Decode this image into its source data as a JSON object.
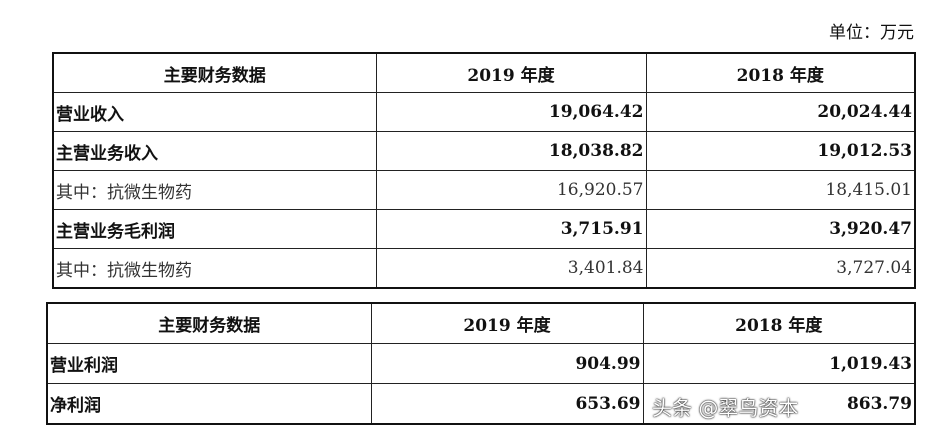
{
  "unit": "单位：万元",
  "table1": {
    "headers": [
      "主要财务数据",
      "2019 年度",
      "2018 年度"
    ],
    "rows": [
      {
        "label": "营业收入",
        "v2019": "19,064.42",
        "v2018": "20,024.44",
        "bold": true
      },
      {
        "label": "主营业务收入",
        "v2019": "18,038.82",
        "v2018": "19,012.53",
        "bold": true
      },
      {
        "label": "其中：抗微生物药",
        "v2019": "16,920.57",
        "v2018": "18,415.01",
        "bold": false
      },
      {
        "label": "主营业务毛利润",
        "v2019": "3,715.91",
        "v2018": "3,920.47",
        "bold": true
      },
      {
        "label": "其中：抗微生物药",
        "v2019": "3,401.84",
        "v2018": "3,727.04",
        "bold": false
      }
    ]
  },
  "table2": {
    "headers": [
      "主要财务数据",
      "2019 年度",
      "2018 年度"
    ],
    "rows": [
      {
        "label": "营业利润",
        "v2019": "904.99",
        "v2018": "1,019.43",
        "bold": true
      },
      {
        "label": "净利润",
        "v2019": "653.69",
        "v2018": "863.79",
        "bold": true
      }
    ]
  },
  "watermark": "头条 @翠鸟资本"
}
